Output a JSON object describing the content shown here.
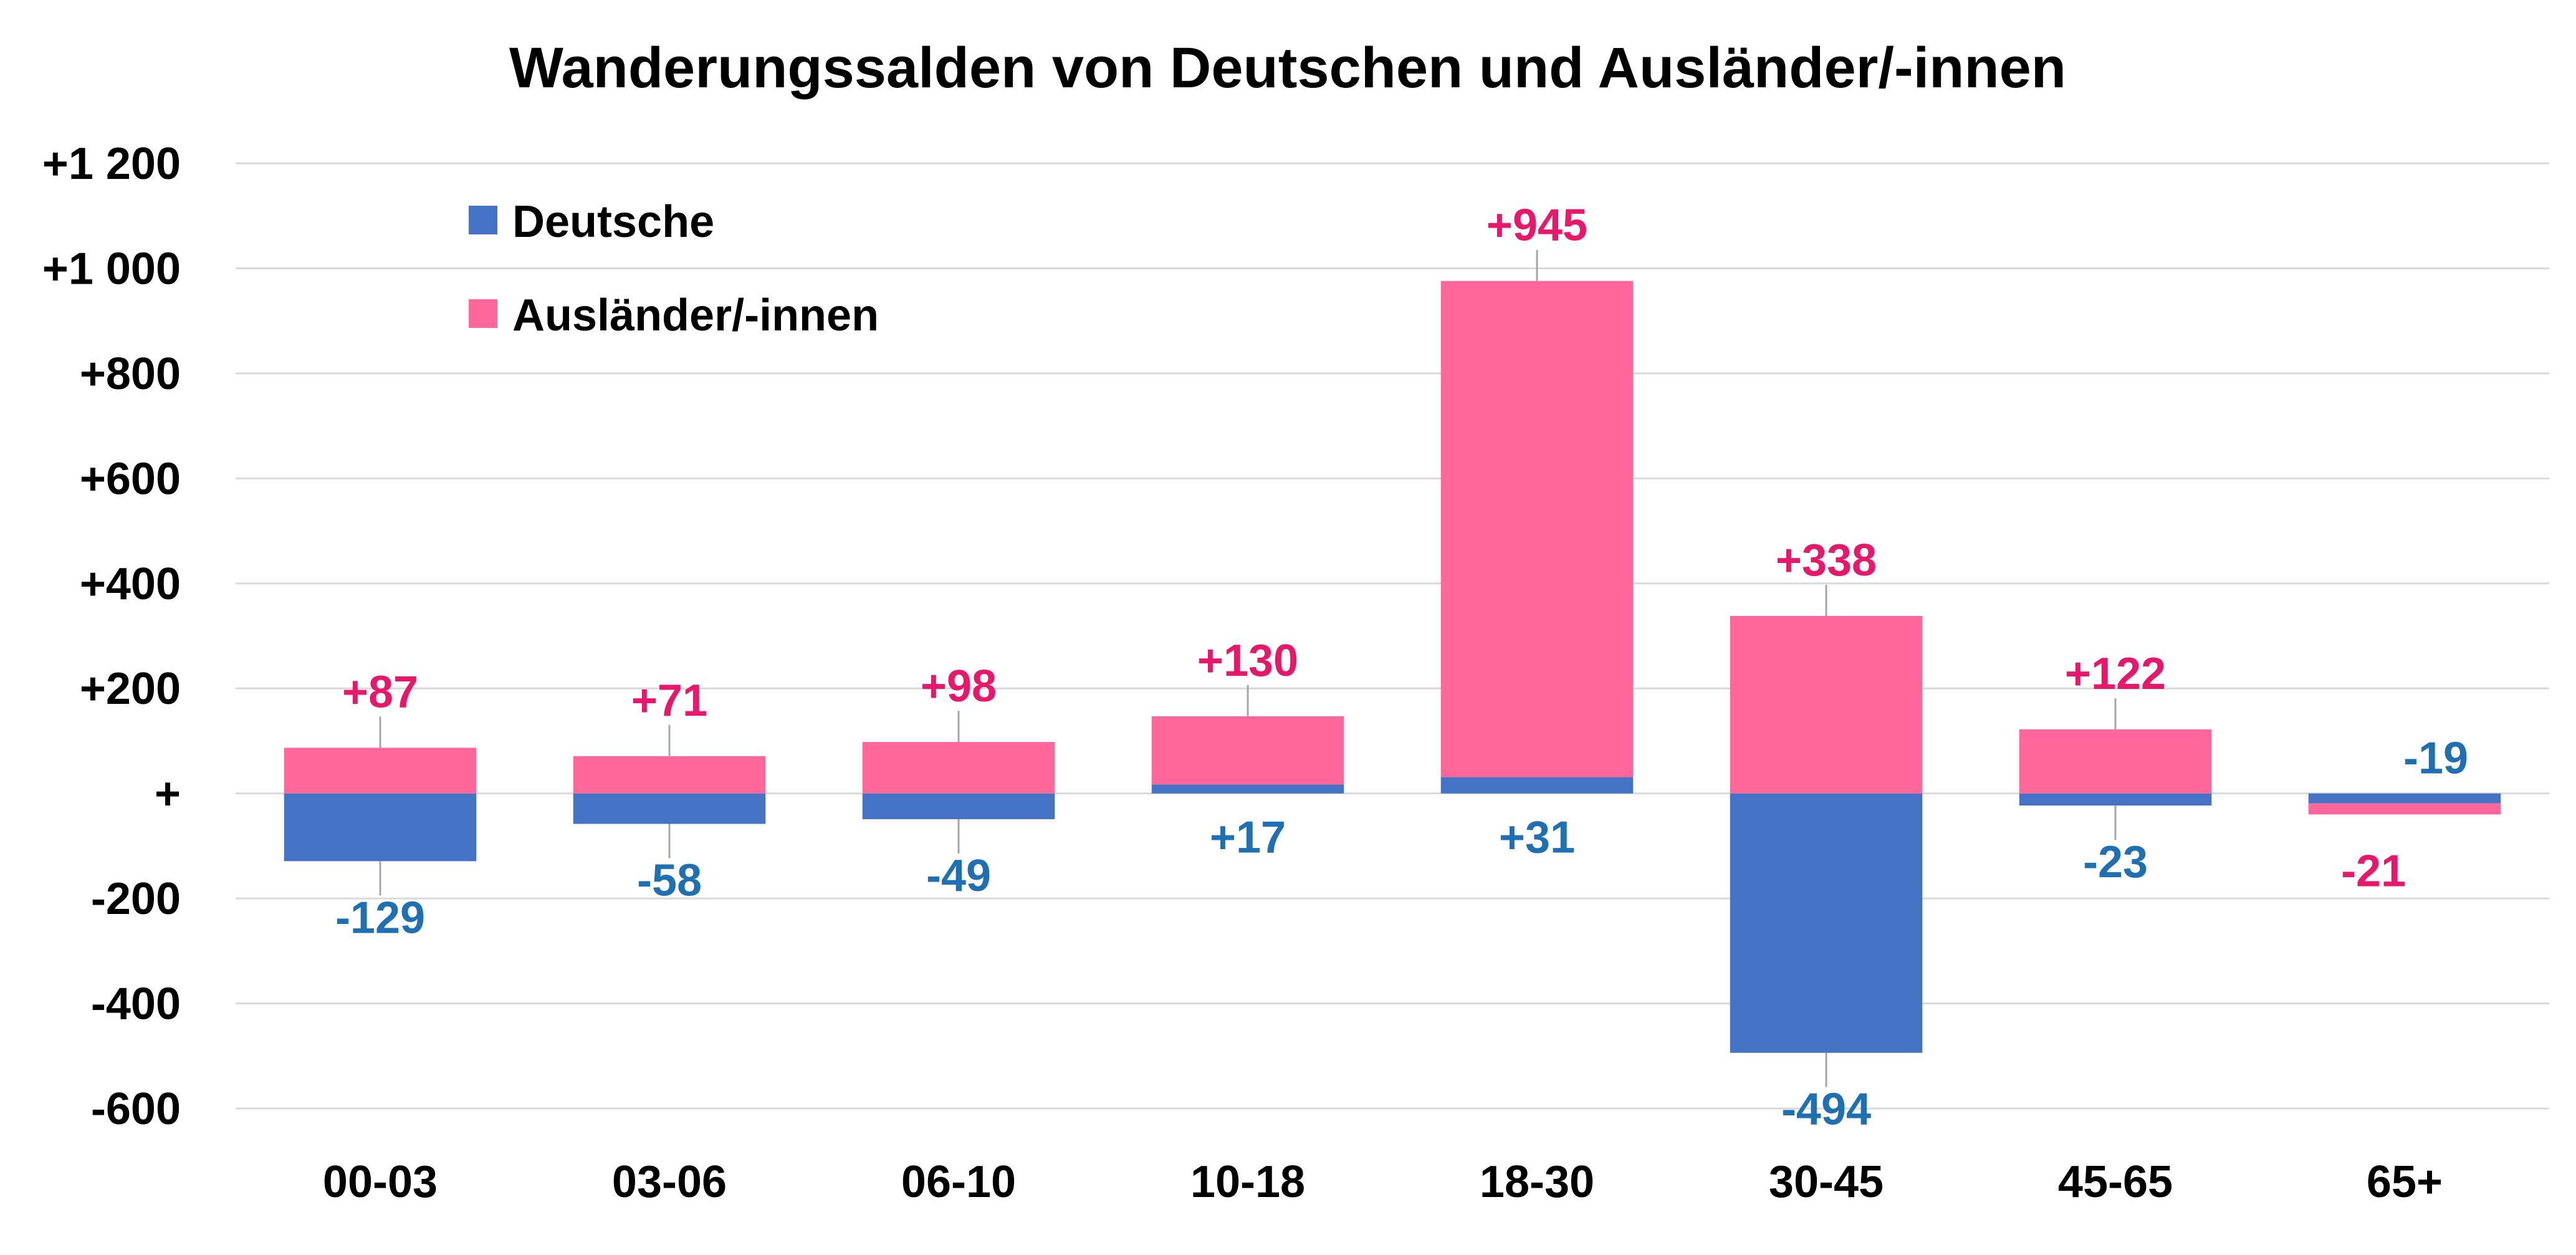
{
  "chart_data": {
    "type": "bar",
    "stacked": true,
    "title": "Wanderungssalden von Deutschen und Ausländer/-innen",
    "xlabel": "",
    "ylabel": "",
    "categories": [
      "00-03",
      "03-06",
      "06-10",
      "10-18",
      "18-30",
      "30-45",
      "45-65",
      "65+"
    ],
    "ylim": [
      -600,
      1200
    ],
    "yticks": [
      1200,
      1000,
      800,
      600,
      400,
      200,
      0,
      -200,
      -400,
      -600
    ],
    "ytick_labels": [
      "+1 200",
      "+1 000",
      "+800",
      "+600",
      "+400",
      "+200",
      "+",
      "-200",
      "-400",
      "-600"
    ],
    "grid": true,
    "legend_position": "top-left",
    "series": [
      {
        "name": "Deutsche",
        "color": "#4472C4",
        "label_color": "#1F6FB5",
        "values": [
          -129,
          -58,
          -49,
          17,
          31,
          -494,
          -23,
          -19
        ],
        "labels": [
          "-129",
          "-58",
          "-49",
          "+17",
          "+31",
          "-494",
          "-23",
          "-19"
        ]
      },
      {
        "name": "Ausländer/-innen",
        "color": "#FF6699",
        "label_color": "#E8176A",
        "values": [
          87,
          71,
          98,
          130,
          945,
          338,
          122,
          -21
        ],
        "labels": [
          "+87",
          "+71",
          "+98",
          "+130",
          "+945",
          "+338",
          "+122",
          "-21"
        ]
      }
    ]
  }
}
